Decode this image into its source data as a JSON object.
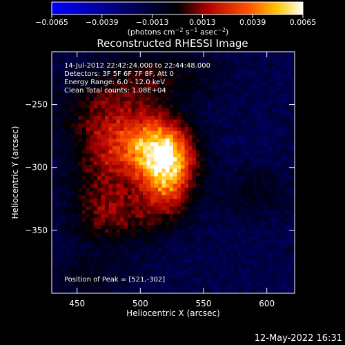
{
  "chart_data": {
    "type": "heatmap",
    "title": "Reconstructed RHESSI Image",
    "xlabel": "Heliocentric X (arcsec)",
    "ylabel": "Heliocentric Y (arcsec)",
    "xlim": [
      430,
      622
    ],
    "ylim": [
      -400,
      -208
    ],
    "x_ticks": [
      450,
      500,
      550,
      600
    ],
    "y_ticks": [
      -350,
      -300,
      -250
    ],
    "x_tick_labels": [
      "450",
      "500",
      "550",
      "600"
    ],
    "y_tick_labels": [
      "−350",
      "−300",
      "−250"
    ],
    "colorbar": {
      "range": [
        -0.0065,
        0.0065
      ],
      "ticks": [
        -0.0065,
        -0.0039,
        -0.0013,
        0.0013,
        0.0039,
        0.0065
      ],
      "tick_labels": [
        "−0.0065",
        "−0.0039",
        "−0.0013",
        "0.0013",
        "0.0039",
        "0.0065"
      ],
      "label_text": "(photons cm",
      "label_exp1": "−2",
      "label_mid": " s",
      "label_exp2": "−1",
      "label_end": " asec",
      "label_exp3": "−2",
      "label_close": ")",
      "colors": [
        "#0000ff",
        "#000000",
        "#c00000",
        "#ff4000",
        "#ffc000",
        "#ffffff"
      ]
    },
    "annotations": {
      "time": "14-Jul-2012 22:42:24.000 to 22:44:48.000",
      "detectors": "Detectors: 3F 5F 6F 7F 8F, Att 0",
      "energy": "Energy Range: 6.0 - 12.0 keV",
      "clean": "Clean    Total counts: 1.08E+04",
      "peak": "Position of Peak = [521,-302]"
    },
    "sources": [
      {
        "x": 521,
        "y": -302,
        "sx": 15,
        "sy": 22,
        "amp": 0.0065
      },
      {
        "x": 505,
        "y": -285,
        "sx": 22,
        "sy": 16,
        "amp": 0.0042
      },
      {
        "x": 478,
        "y": -255,
        "sx": 30,
        "sy": 22,
        "amp": 0.0025
      },
      {
        "x": 470,
        "y": -315,
        "sx": 20,
        "sy": 30,
        "amp": 0.0022
      },
      {
        "x": 520,
        "y": -225,
        "sx": 30,
        "sy": 14,
        "amp": 0.0015
      },
      {
        "x": 490,
        "y": -340,
        "sx": 25,
        "sy": 15,
        "amp": 0.0016
      },
      {
        "x": 590,
        "y": -320,
        "sx": 20,
        "sy": 15,
        "amp": 0.0012
      },
      {
        "x": 455,
        "y": -390,
        "sx": 25,
        "sy": 12,
        "amp": 0.0012
      }
    ],
    "background_level": -0.0018
  },
  "footer": {
    "date": "12-May-2022 16:31"
  }
}
